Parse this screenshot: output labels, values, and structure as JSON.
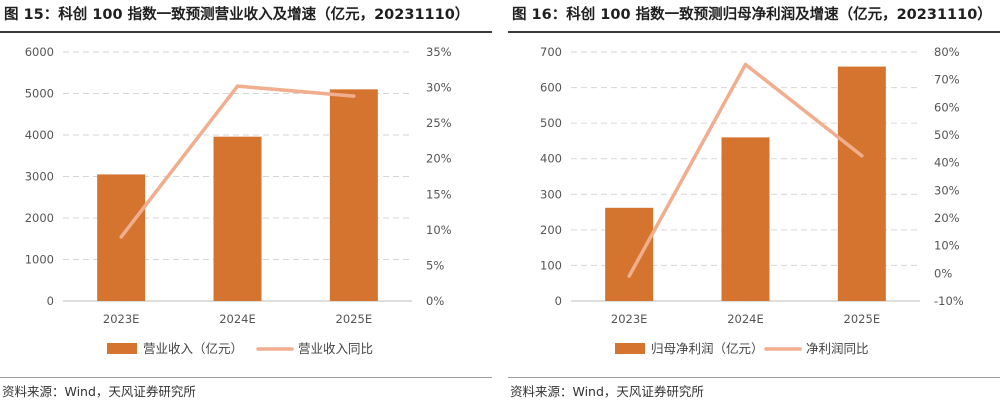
{
  "colors": {
    "bar": "#d4742e",
    "line": "#f0ae8e",
    "grid": "#d6d6d6"
  },
  "chart_data": [
    {
      "type": "bar",
      "title": "图 15：科创 100 指数一致预测营业收入及增速（亿元，20231110）",
      "source": "资料来源：Wind，天风证券研究所",
      "categories": [
        "2023E",
        "2024E",
        "2025E"
      ],
      "series": [
        {
          "name": "营业收入（亿元）",
          "type": "bar",
          "axis": "left",
          "values": [
            3050,
            3960,
            5100
          ]
        },
        {
          "name": "营业收入同比",
          "type": "line",
          "axis": "right",
          "values": [
            9,
            30.2,
            28.8
          ]
        }
      ],
      "y_left": {
        "min": 0,
        "max": 6000,
        "step": 1000,
        "ticks": [
          "0",
          "1000",
          "2000",
          "3000",
          "4000",
          "5000",
          "6000"
        ]
      },
      "y_right": {
        "min": 0,
        "max": 35,
        "step": 5,
        "ticks": [
          "0%",
          "5%",
          "10%",
          "15%",
          "20%",
          "25%",
          "30%",
          "35%"
        ]
      },
      "grid": true,
      "legend": "bottom"
    },
    {
      "type": "bar",
      "title": "图 16：科创 100 指数一致预测归母净利润及增速（亿元，20231110）",
      "source": "资料来源：Wind，天风证券研究所",
      "categories": [
        "2023E",
        "2024E",
        "2025E"
      ],
      "series": [
        {
          "name": "归母净利润（亿元）",
          "type": "bar",
          "axis": "left",
          "values": [
            262,
            460,
            659
          ]
        },
        {
          "name": "净利润同比",
          "type": "line",
          "axis": "right",
          "values": [
            -1,
            75.5,
            42.5
          ]
        }
      ],
      "y_left": {
        "min": 0,
        "max": 700,
        "step": 100,
        "ticks": [
          "0",
          "100",
          "200",
          "300",
          "400",
          "500",
          "600",
          "700"
        ]
      },
      "y_right": {
        "min": -10,
        "max": 80,
        "step": 10,
        "ticks": [
          "-10%",
          "0%",
          "10%",
          "20%",
          "30%",
          "40%",
          "50%",
          "60%",
          "70%",
          "80%"
        ]
      },
      "grid": true,
      "legend": "bottom"
    }
  ]
}
